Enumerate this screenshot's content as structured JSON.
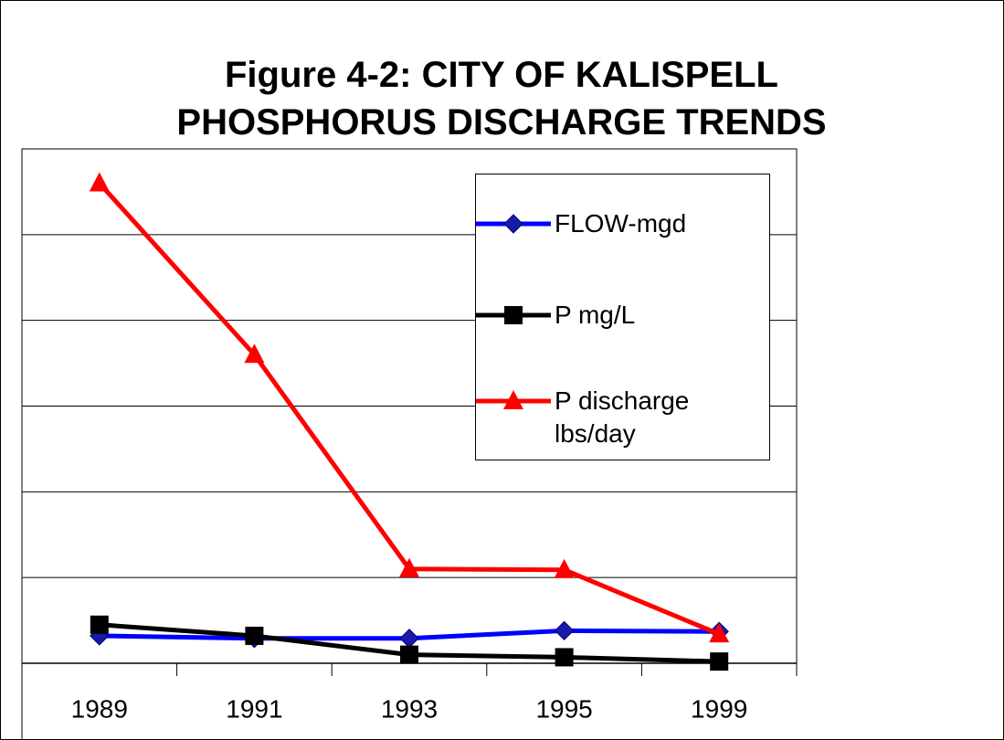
{
  "chart_data": {
    "type": "line",
    "title": "Figure 4-2: CITY OF KALISPELL PHOSPHORUS DISCHARGE TRENDS",
    "categories": [
      "1989",
      "1991",
      "1993",
      "1995",
      "1999"
    ],
    "series": [
      {
        "name": "FLOW-mgd",
        "color": "#0000ff",
        "marker": "diamond",
        "values": [
          3.2,
          2.9,
          2.9,
          3.8,
          3.7
        ]
      },
      {
        "name": "P mg/L",
        "color": "#000000",
        "marker": "square",
        "values": [
          4.5,
          3.2,
          1.0,
          0.7,
          0.2
        ]
      },
      {
        "name": "P discharge lbs/day",
        "color": "#ff0000",
        "marker": "triangle",
        "values": [
          56,
          36,
          11,
          10.9,
          3.4
        ]
      }
    ],
    "ylim": [
      0,
      60
    ],
    "yticks": [
      0,
      10,
      20,
      30,
      40,
      50,
      60
    ],
    "grid": true,
    "legend": "right"
  }
}
